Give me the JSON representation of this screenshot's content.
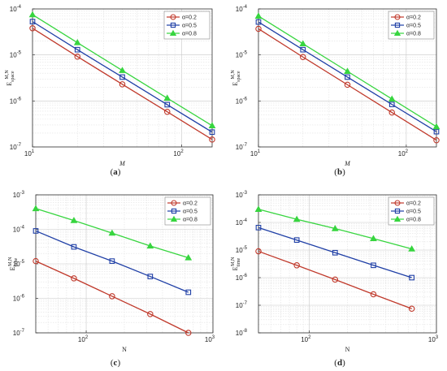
{
  "colors": {
    "red": "#c0392b",
    "blue": "#1f3fa6",
    "green": "#37d53f"
  },
  "chart_data": [
    {
      "panel": "a",
      "caption_prefix": "(",
      "caption_letter": "a",
      "caption_suffix": ")",
      "type": "line",
      "xscale": "log",
      "yscale": "log",
      "xlim": [
        10,
        160
      ],
      "ylim": [
        1e-07,
        0.0001
      ],
      "xticks": [
        {
          "base": "10",
          "exp": "1",
          "v": 10
        },
        {
          "base": "10",
          "exp": "2",
          "v": 100
        }
      ],
      "yticks": [
        {
          "base": "10",
          "exp": "-7",
          "v": 1e-07
        },
        {
          "base": "10",
          "exp": "-6",
          "v": 1e-06
        },
        {
          "base": "10",
          "exp": "-5",
          "v": 1e-05
        },
        {
          "base": "10",
          "exp": "-4",
          "v": 0.0001
        }
      ],
      "xlabel": "M",
      "ylabel": "E_space^{M,N}",
      "grid": true,
      "legend": "top-right",
      "x": [
        10,
        20,
        40,
        80,
        160
      ],
      "series": [
        {
          "name": "α=0.2",
          "marker": "circle",
          "color": "red",
          "values": [
            3.8e-05,
            9.2e-06,
            2.3e-06,
            5.8e-07,
            1.45e-07
          ]
        },
        {
          "name": "α=0.5",
          "marker": "square",
          "color": "blue",
          "values": [
            5.3e-05,
            1.3e-05,
            3.3e-06,
            8.3e-07,
            2.1e-07
          ]
        },
        {
          "name": "α=0.8",
          "marker": "triangle",
          "color": "green",
          "values": [
            7.5e-05,
            1.85e-05,
            4.6e-06,
            1.15e-06,
            2.9e-07
          ]
        }
      ]
    },
    {
      "panel": "b",
      "caption_prefix": "(",
      "caption_letter": "b",
      "caption_suffix": ")",
      "type": "line",
      "xscale": "log",
      "yscale": "log",
      "xlim": [
        10,
        160
      ],
      "ylim": [
        1e-07,
        0.0001
      ],
      "xticks": [
        {
          "base": "10",
          "exp": "1",
          "v": 10
        },
        {
          "base": "10",
          "exp": "2",
          "v": 100
        }
      ],
      "yticks": [
        {
          "base": "10",
          "exp": "-7",
          "v": 1e-07
        },
        {
          "base": "10",
          "exp": "-6",
          "v": 1e-06
        },
        {
          "base": "10",
          "exp": "-5",
          "v": 1e-05
        },
        {
          "base": "10",
          "exp": "-4",
          "v": 0.0001
        }
      ],
      "xlabel": "M",
      "ylabel": "E_space^{M,N}",
      "grid": true,
      "legend": "top-right",
      "x": [
        10,
        20,
        40,
        80,
        160
      ],
      "series": [
        {
          "name": "α=0.2",
          "marker": "circle",
          "color": "red",
          "values": [
            3.7e-05,
            9e-06,
            2.25e-06,
            5.6e-07,
            1.4e-07
          ]
        },
        {
          "name": "α=0.5",
          "marker": "square",
          "color": "blue",
          "values": [
            5.2e-05,
            1.3e-05,
            3.3e-06,
            8.4e-07,
            2.15e-07
          ]
        },
        {
          "name": "α=0.8",
          "marker": "triangle",
          "color": "green",
          "values": [
            7e-05,
            1.75e-05,
            4.4e-06,
            1.1e-06,
            2.75e-07
          ]
        }
      ]
    },
    {
      "panel": "c",
      "caption_prefix": "(",
      "caption_letter": "c",
      "caption_suffix": ")",
      "type": "line",
      "xscale": "log",
      "yscale": "log",
      "xlim": [
        40,
        1000
      ],
      "ylim": [
        1e-07,
        0.001
      ],
      "xticks": [
        {
          "base": "10",
          "exp": "2",
          "v": 100
        },
        {
          "base": "10",
          "exp": "3",
          "v": 1000
        }
      ],
      "yticks": [
        {
          "base": "10",
          "exp": "-7",
          "v": 1e-07
        },
        {
          "base": "10",
          "exp": "-6",
          "v": 1e-06
        },
        {
          "base": "10",
          "exp": "-5",
          "v": 1e-05
        },
        {
          "base": "10",
          "exp": "-4",
          "v": 0.0001
        },
        {
          "base": "10",
          "exp": "-3",
          "v": 0.001
        }
      ],
      "xlabel": "N",
      "ylabel": "E_time^{M,N}",
      "grid": true,
      "legend": "top-right",
      "x": [
        40,
        80,
        160,
        320,
        640
      ],
      "series": [
        {
          "name": "α=0.2",
          "marker": "circle",
          "color": "red",
          "values": [
            1.2e-05,
            3.8e-06,
            1.15e-06,
            3.5e-07,
            1e-07
          ]
        },
        {
          "name": "α=0.5",
          "marker": "square",
          "color": "blue",
          "values": [
            9e-05,
            3.1e-05,
            1.2e-05,
            4.3e-06,
            1.5e-06
          ]
        },
        {
          "name": "α=0.8",
          "marker": "triangle",
          "color": "green",
          "values": [
            0.0004,
            0.00018,
            7.8e-05,
            3.3e-05,
            1.5e-05
          ]
        }
      ]
    },
    {
      "panel": "d",
      "caption_prefix": "(",
      "caption_letter": "d",
      "caption_suffix": ")",
      "type": "line",
      "xscale": "log",
      "yscale": "log",
      "xlim": [
        40,
        1000
      ],
      "ylim": [
        1e-08,
        0.001
      ],
      "xticks": [
        {
          "base": "10",
          "exp": "2",
          "v": 100
        },
        {
          "base": "10",
          "exp": "3",
          "v": 1000
        }
      ],
      "yticks": [
        {
          "base": "10",
          "exp": "-8",
          "v": 1e-08
        },
        {
          "base": "10",
          "exp": "-7",
          "v": 1e-07
        },
        {
          "base": "10",
          "exp": "-6",
          "v": 1e-06
        },
        {
          "base": "10",
          "exp": "-5",
          "v": 1e-05
        },
        {
          "base": "10",
          "exp": "-4",
          "v": 0.0001
        },
        {
          "base": "10",
          "exp": "-3",
          "v": 0.001
        }
      ],
      "xlabel": "N",
      "ylabel": "E_time^{M,N}",
      "grid": true,
      "legend": "top-right",
      "x": [
        40,
        80,
        160,
        320,
        640
      ],
      "series": [
        {
          "name": "α=0.2",
          "marker": "circle",
          "color": "red",
          "values": [
            9e-06,
            2.8e-06,
            8.5e-07,
            2.5e-07,
            7.5e-08
          ]
        },
        {
          "name": "α=0.5",
          "marker": "square",
          "color": "blue",
          "values": [
            6.5e-05,
            2.3e-05,
            8e-06,
            2.8e-06,
            1e-06
          ]
        },
        {
          "name": "α=0.8",
          "marker": "triangle",
          "color": "green",
          "values": [
            0.0003,
            0.00013,
            6e-05,
            2.6e-05,
            1.1e-05
          ]
        }
      ]
    }
  ]
}
